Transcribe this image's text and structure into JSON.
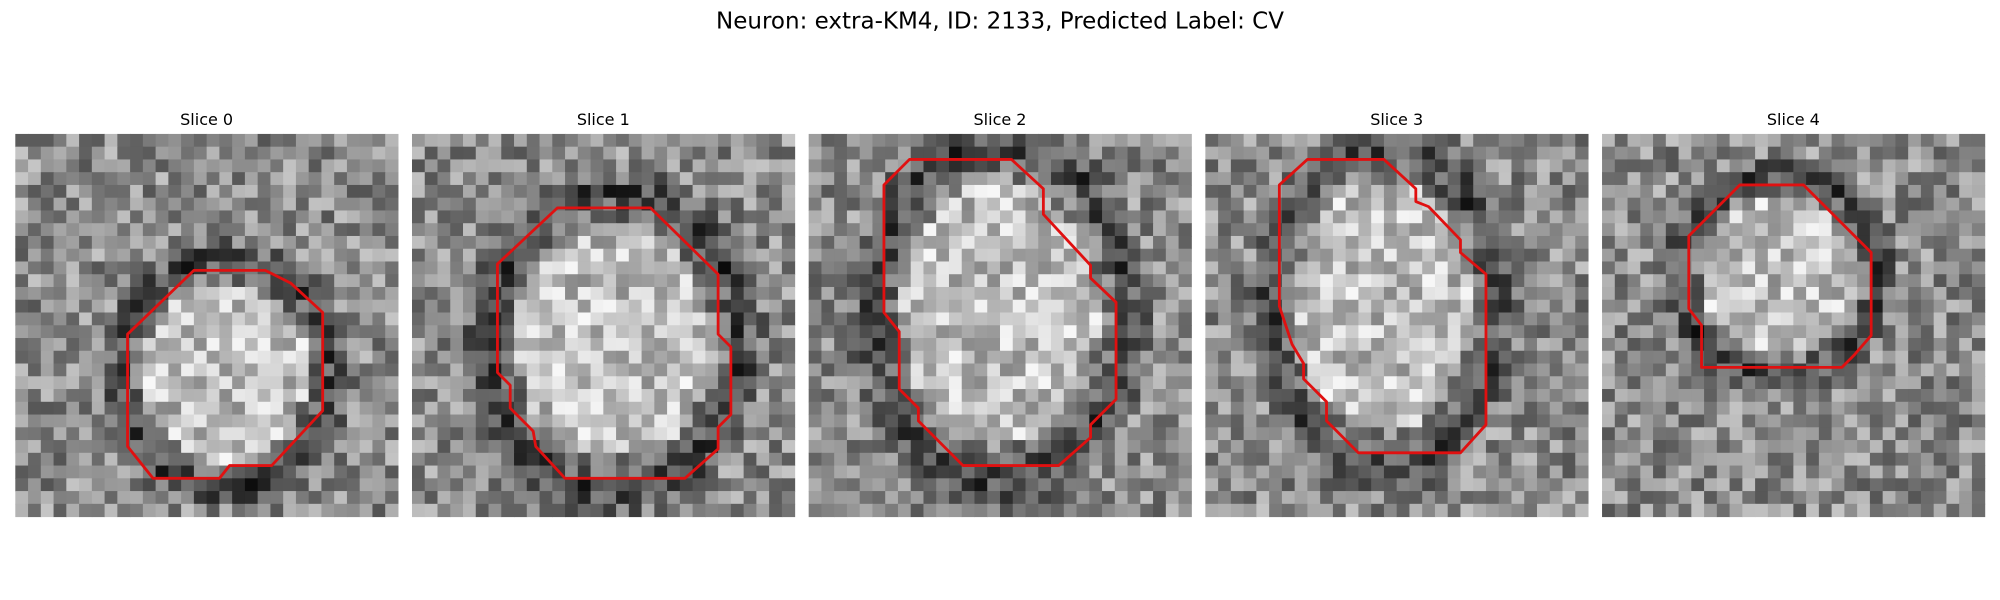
{
  "title": "Neuron: extra-KM4, ID: 2133, Predicted Label: CV",
  "panels": [
    {
      "title": "Slice 0"
    },
    {
      "title": "Slice 1"
    },
    {
      "title": "Slice 2"
    },
    {
      "title": "Slice 3"
    },
    {
      "title": "Slice 4"
    }
  ]
}
